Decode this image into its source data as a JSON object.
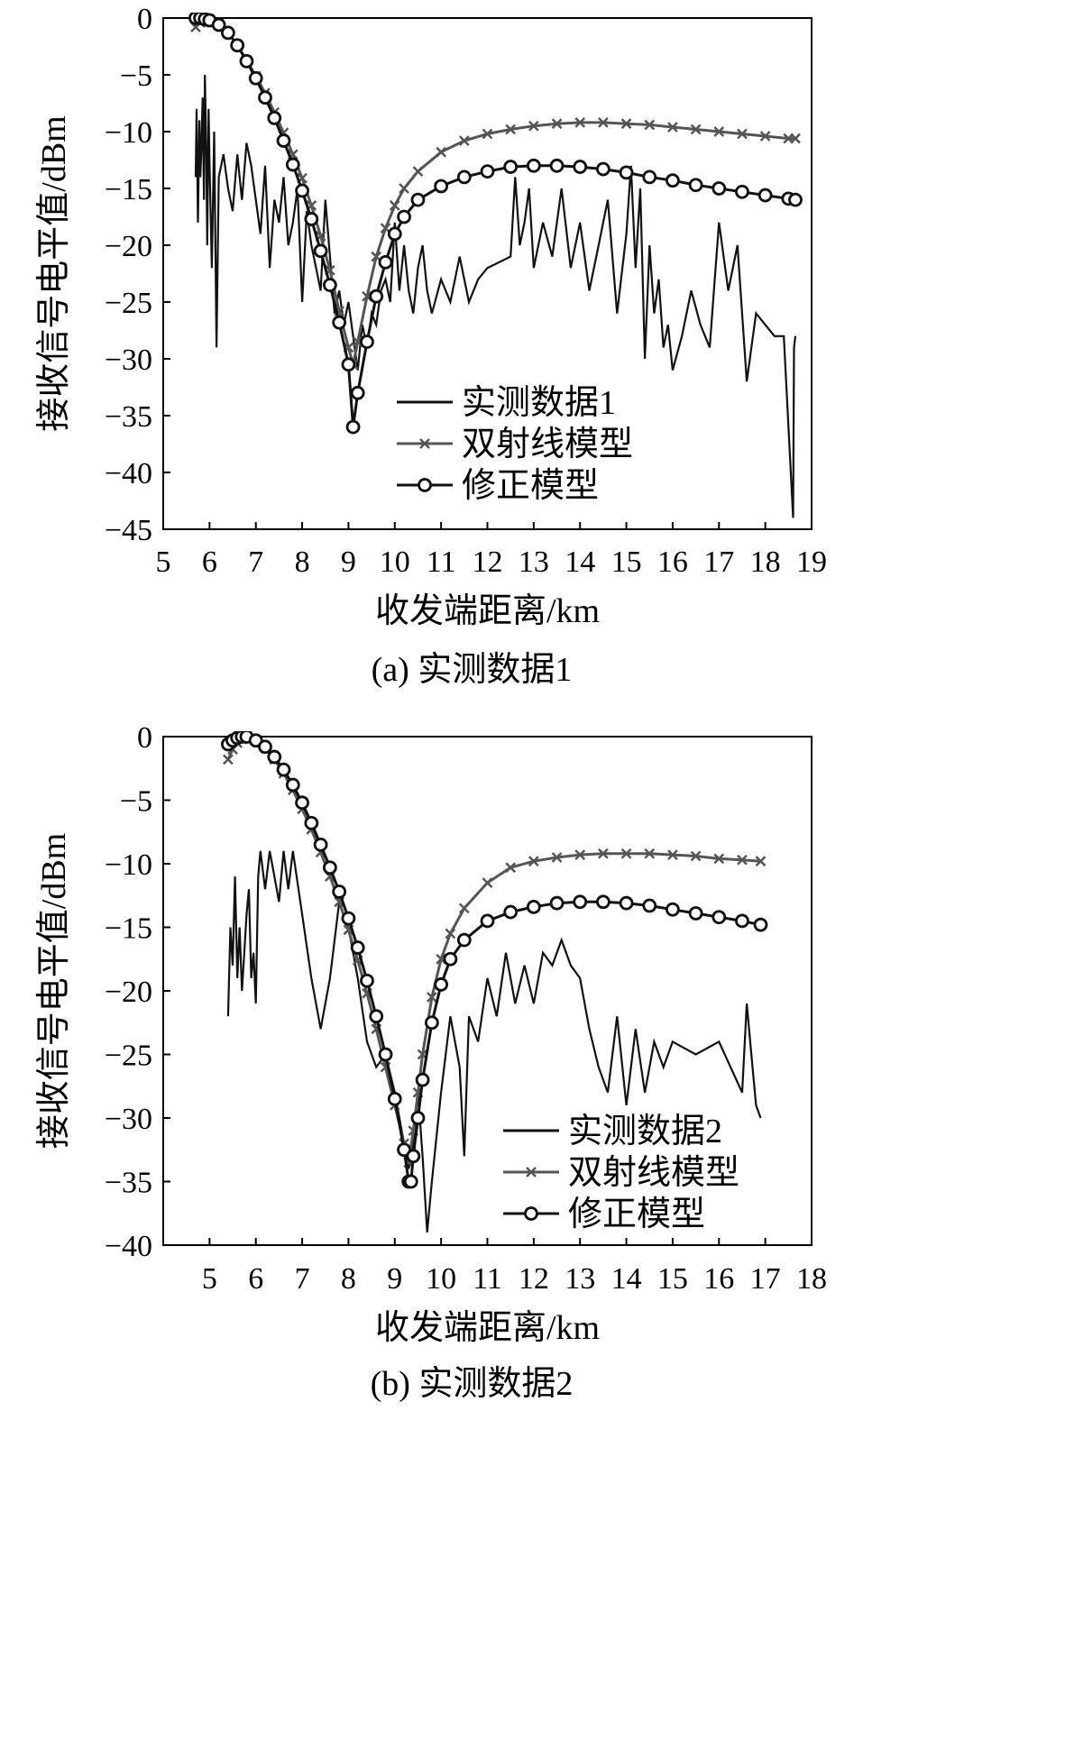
{
  "chart_data": [
    {
      "type": "line",
      "caption": "(a) 实测数据1",
      "xlabel": "收发端距离/km",
      "ylabel": "接收信号电平值/dBm",
      "xlim": [
        5,
        19
      ],
      "ylim": [
        -45,
        0
      ],
      "xticks": [
        "5",
        "6",
        "7",
        "8",
        "9",
        "10",
        "11",
        "12",
        "13",
        "14",
        "15",
        "16",
        "17",
        "18",
        "19"
      ],
      "yticks": [
        "0",
        "−5",
        "−10",
        "−15",
        "−20",
        "−25",
        "−30",
        "−35",
        "−40",
        "−45"
      ],
      "legend_position": "center-right",
      "series": [
        {
          "name": "实测数据1",
          "marker": "none",
          "color": "#111111",
          "x": [
            5.7,
            5.72,
            5.75,
            5.78,
            5.8,
            5.82,
            5.85,
            5.88,
            5.9,
            5.93,
            5.95,
            5.98,
            6.0,
            6.05,
            6.1,
            6.15,
            6.2,
            6.3,
            6.4,
            6.5,
            6.6,
            6.7,
            6.8,
            6.9,
            7.0,
            7.1,
            7.2,
            7.3,
            7.4,
            7.5,
            7.6,
            7.7,
            7.8,
            7.9,
            8.0,
            8.1,
            8.2,
            8.3,
            8.4,
            8.5,
            8.6,
            8.7,
            8.8,
            8.9,
            9.0,
            9.1,
            9.2,
            9.3,
            9.4,
            9.5,
            9.6,
            9.7,
            9.8,
            9.9,
            10.0,
            10.1,
            10.2,
            10.3,
            10.4,
            10.5,
            10.6,
            10.7,
            10.8,
            11.0,
            11.2,
            11.4,
            11.6,
            11.8,
            12.0,
            12.5,
            12.6,
            12.7,
            12.8,
            12.9,
            13.0,
            13.2,
            13.4,
            13.6,
            13.8,
            14.0,
            14.2,
            14.4,
            14.6,
            14.8,
            15.0,
            15.1,
            15.2,
            15.3,
            15.4,
            15.5,
            15.6,
            15.7,
            15.8,
            15.9,
            16.0,
            16.2,
            16.4,
            16.6,
            16.8,
            17.0,
            17.2,
            17.4,
            17.6,
            17.8,
            18.0,
            18.2,
            18.4,
            18.6,
            18.62,
            18.65
          ],
          "y": [
            -14,
            -8,
            -18,
            -9,
            -14,
            -12,
            -7,
            -16,
            -5,
            -12,
            -20,
            -8,
            -13,
            -22,
            -10,
            -29,
            -14,
            -12,
            -15,
            -17,
            -12,
            -16,
            -11,
            -13,
            -16,
            -19,
            -13,
            -22,
            -16,
            -18,
            -14,
            -20,
            -18,
            -15,
            -25,
            -17,
            -20,
            -22,
            -24,
            -16,
            -21,
            -26,
            -24,
            -27,
            -25,
            -28,
            -31,
            -27,
            -29,
            -26,
            -27,
            -24,
            -23,
            -25,
            -18,
            -24,
            -20,
            -24,
            -26,
            -22,
            -20,
            -24,
            -26,
            -23,
            -25,
            -21,
            -25,
            -23,
            -22,
            -21,
            -14,
            -20,
            -18,
            -15,
            -22,
            -18,
            -21,
            -15,
            -22,
            -18,
            -24,
            -20,
            -16,
            -26,
            -19,
            -13,
            -22,
            -15,
            -30,
            -20,
            -26,
            -23,
            -29,
            -27,
            -31,
            -28,
            -24,
            -27,
            -29,
            -18,
            -24,
            -20,
            -32,
            -26,
            -27,
            -28,
            -28,
            -44,
            -29,
            -28
          ]
        },
        {
          "name": "双射线模型",
          "marker": "x",
          "color": "#555555",
          "x": [
            5.7,
            5.8,
            5.9,
            6.0,
            6.2,
            6.4,
            6.6,
            6.8,
            7.0,
            7.2,
            7.4,
            7.6,
            7.8,
            8.0,
            8.2,
            8.4,
            8.6,
            8.8,
            9.0,
            9.1,
            9.2,
            9.4,
            9.6,
            9.8,
            10.0,
            10.2,
            10.5,
            11.0,
            11.5,
            12.0,
            12.5,
            13.0,
            13.5,
            14.0,
            14.5,
            15.0,
            15.5,
            16.0,
            16.5,
            17.0,
            17.5,
            18.0,
            18.5,
            18.65
          ],
          "y": [
            -0.8,
            -0.4,
            -0.2,
            -0.1,
            -0.5,
            -1.3,
            -2.4,
            -3.7,
            -5.1,
            -6.6,
            -8.3,
            -10.1,
            -12.0,
            -14.1,
            -16.5,
            -19.2,
            -22.2,
            -25.8,
            -29.0,
            -30.5,
            -28.5,
            -24.5,
            -21.0,
            -18.5,
            -16.5,
            -15.0,
            -13.5,
            -11.8,
            -10.8,
            -10.2,
            -9.8,
            -9.5,
            -9.3,
            -9.2,
            -9.2,
            -9.3,
            -9.4,
            -9.6,
            -9.8,
            -10.0,
            -10.2,
            -10.4,
            -10.6,
            -10.6
          ]
        },
        {
          "name": "修正模型",
          "marker": "o",
          "color": "#111111",
          "x": [
            5.7,
            5.8,
            5.9,
            6.0,
            6.2,
            6.4,
            6.6,
            6.8,
            7.0,
            7.2,
            7.4,
            7.6,
            7.8,
            8.0,
            8.2,
            8.4,
            8.6,
            8.8,
            9.0,
            9.1,
            9.2,
            9.4,
            9.6,
            9.8,
            10.0,
            10.2,
            10.5,
            11.0,
            11.5,
            12.0,
            12.5,
            13.0,
            13.5,
            14.0,
            14.5,
            15.0,
            15.5,
            16.0,
            16.5,
            17.0,
            17.5,
            18.0,
            18.5,
            18.65
          ],
          "y": [
            0,
            0,
            -0.1,
            -0.2,
            -0.6,
            -1.3,
            -2.4,
            -3.8,
            -5.3,
            -7.0,
            -8.8,
            -10.8,
            -12.9,
            -15.2,
            -17.7,
            -20.5,
            -23.5,
            -26.8,
            -30.5,
            -36.0,
            -33.0,
            -28.5,
            -24.5,
            -21.5,
            -19.0,
            -17.5,
            -16.0,
            -14.8,
            -14.0,
            -13.5,
            -13.1,
            -13.0,
            -13.0,
            -13.1,
            -13.3,
            -13.6,
            -14.0,
            -14.3,
            -14.7,
            -15.0,
            -15.3,
            -15.6,
            -15.9,
            -16.0
          ]
        }
      ]
    },
    {
      "type": "line",
      "caption": "(b) 实测数据2",
      "xlabel": "收发端距离/km",
      "ylabel": "接收信号电平值/dBm",
      "xlim": [
        4,
        18
      ],
      "ylim": [
        -40,
        0
      ],
      "xticks": [
        "5",
        "6",
        "7",
        "8",
        "9",
        "10",
        "11",
        "12",
        "13",
        "14",
        "15",
        "16",
        "17",
        "18"
      ],
      "yticks": [
        "0",
        "−5",
        "−10",
        "−15",
        "−20",
        "−25",
        "−30",
        "−35",
        "−40"
      ],
      "legend_position": "lower-right",
      "series": [
        {
          "name": "实测数据2",
          "marker": "none",
          "color": "#111111",
          "x": [
            5.4,
            5.45,
            5.5,
            5.55,
            5.6,
            5.65,
            5.7,
            5.75,
            5.8,
            5.85,
            5.9,
            5.95,
            6.0,
            6.05,
            6.1,
            6.2,
            6.3,
            6.4,
            6.5,
            6.6,
            6.7,
            6.8,
            7.0,
            7.2,
            7.4,
            7.6,
            7.8,
            8.0,
            8.2,
            8.4,
            8.6,
            8.8,
            9.0,
            9.1,
            9.2,
            9.3,
            9.4,
            9.5,
            9.6,
            9.7,
            9.8,
            10.0,
            10.2,
            10.4,
            10.5,
            10.6,
            10.8,
            11.0,
            11.2,
            11.4,
            11.6,
            11.8,
            12.0,
            12.2,
            12.4,
            12.6,
            12.8,
            13.0,
            13.2,
            13.4,
            13.6,
            13.8,
            14.0,
            14.2,
            14.4,
            14.6,
            14.8,
            15.0,
            15.5,
            16.0,
            16.5,
            16.6,
            16.7,
            16.8,
            16.9
          ],
          "y": [
            -22,
            -15,
            -18,
            -11,
            -19,
            -15,
            -20,
            -17,
            -14,
            -12,
            -19,
            -17,
            -21,
            -11,
            -9,
            -12,
            -9,
            -11,
            -13,
            -9,
            -12,
            -9,
            -14,
            -19,
            -23,
            -19,
            -13,
            -15,
            -19,
            -24,
            -26,
            -25,
            -28,
            -30,
            -32,
            -34,
            -32,
            -28,
            -33,
            -39,
            -35,
            -28,
            -22,
            -26,
            -33,
            -22,
            -24,
            -19,
            -22,
            -17,
            -21,
            -18,
            -21,
            -17,
            -18,
            -16,
            -18,
            -19,
            -23,
            -26,
            -28,
            -22,
            -29,
            -23,
            -28,
            -24,
            -26,
            -24,
            -25,
            -24,
            -28,
            -21,
            -25,
            -29,
            -30
          ]
        },
        {
          "name": "双射线模型",
          "marker": "x",
          "color": "#555555",
          "x": [
            5.4,
            5.5,
            5.6,
            5.7,
            5.8,
            6.0,
            6.2,
            6.4,
            6.6,
            6.8,
            7.0,
            7.2,
            7.4,
            7.6,
            7.8,
            8.0,
            8.2,
            8.4,
            8.6,
            8.8,
            9.0,
            9.2,
            9.3,
            9.4,
            9.5,
            9.6,
            9.8,
            10.0,
            10.2,
            10.5,
            11.0,
            11.5,
            12.0,
            12.5,
            13.0,
            13.5,
            14.0,
            14.5,
            15.0,
            15.5,
            16.0,
            16.5,
            16.9
          ],
          "y": [
            -1.8,
            -1.0,
            -0.5,
            -0.2,
            -0.1,
            -0.3,
            -0.9,
            -1.8,
            -2.9,
            -4.2,
            -5.7,
            -7.3,
            -9.1,
            -11.0,
            -13.0,
            -15.2,
            -17.6,
            -20.2,
            -23.0,
            -26.0,
            -29.0,
            -32.0,
            -33.5,
            -31.0,
            -28.0,
            -25.0,
            -20.5,
            -17.5,
            -15.5,
            -13.5,
            -11.5,
            -10.3,
            -9.8,
            -9.5,
            -9.3,
            -9.2,
            -9.2,
            -9.2,
            -9.3,
            -9.4,
            -9.6,
            -9.7,
            -9.8
          ]
        },
        {
          "name": "修正模型",
          "marker": "o",
          "color": "#111111",
          "x": [
            5.4,
            5.5,
            5.6,
            5.7,
            5.8,
            6.0,
            6.2,
            6.4,
            6.6,
            6.8,
            7.0,
            7.2,
            7.4,
            7.6,
            7.8,
            8.0,
            8.2,
            8.4,
            8.6,
            8.8,
            9.0,
            9.2,
            9.3,
            9.35,
            9.4,
            9.5,
            9.6,
            9.8,
            10.0,
            10.2,
            10.5,
            11.0,
            11.5,
            12.0,
            12.5,
            13.0,
            13.5,
            14.0,
            14.5,
            15.0,
            15.5,
            16.0,
            16.5,
            16.9
          ],
          "y": [
            -0.6,
            -0.3,
            -0.1,
            0,
            0,
            -0.3,
            -0.8,
            -1.6,
            -2.6,
            -3.8,
            -5.2,
            -6.8,
            -8.5,
            -10.3,
            -12.2,
            -14.3,
            -16.6,
            -19.2,
            -22.0,
            -25.0,
            -28.5,
            -32.5,
            -35.0,
            -35.0,
            -33.0,
            -30.0,
            -27.0,
            -22.5,
            -19.5,
            -17.5,
            -16.0,
            -14.5,
            -13.8,
            -13.4,
            -13.1,
            -13.0,
            -13.0,
            -13.1,
            -13.3,
            -13.6,
            -13.9,
            -14.2,
            -14.5,
            -14.8
          ]
        }
      ]
    }
  ]
}
